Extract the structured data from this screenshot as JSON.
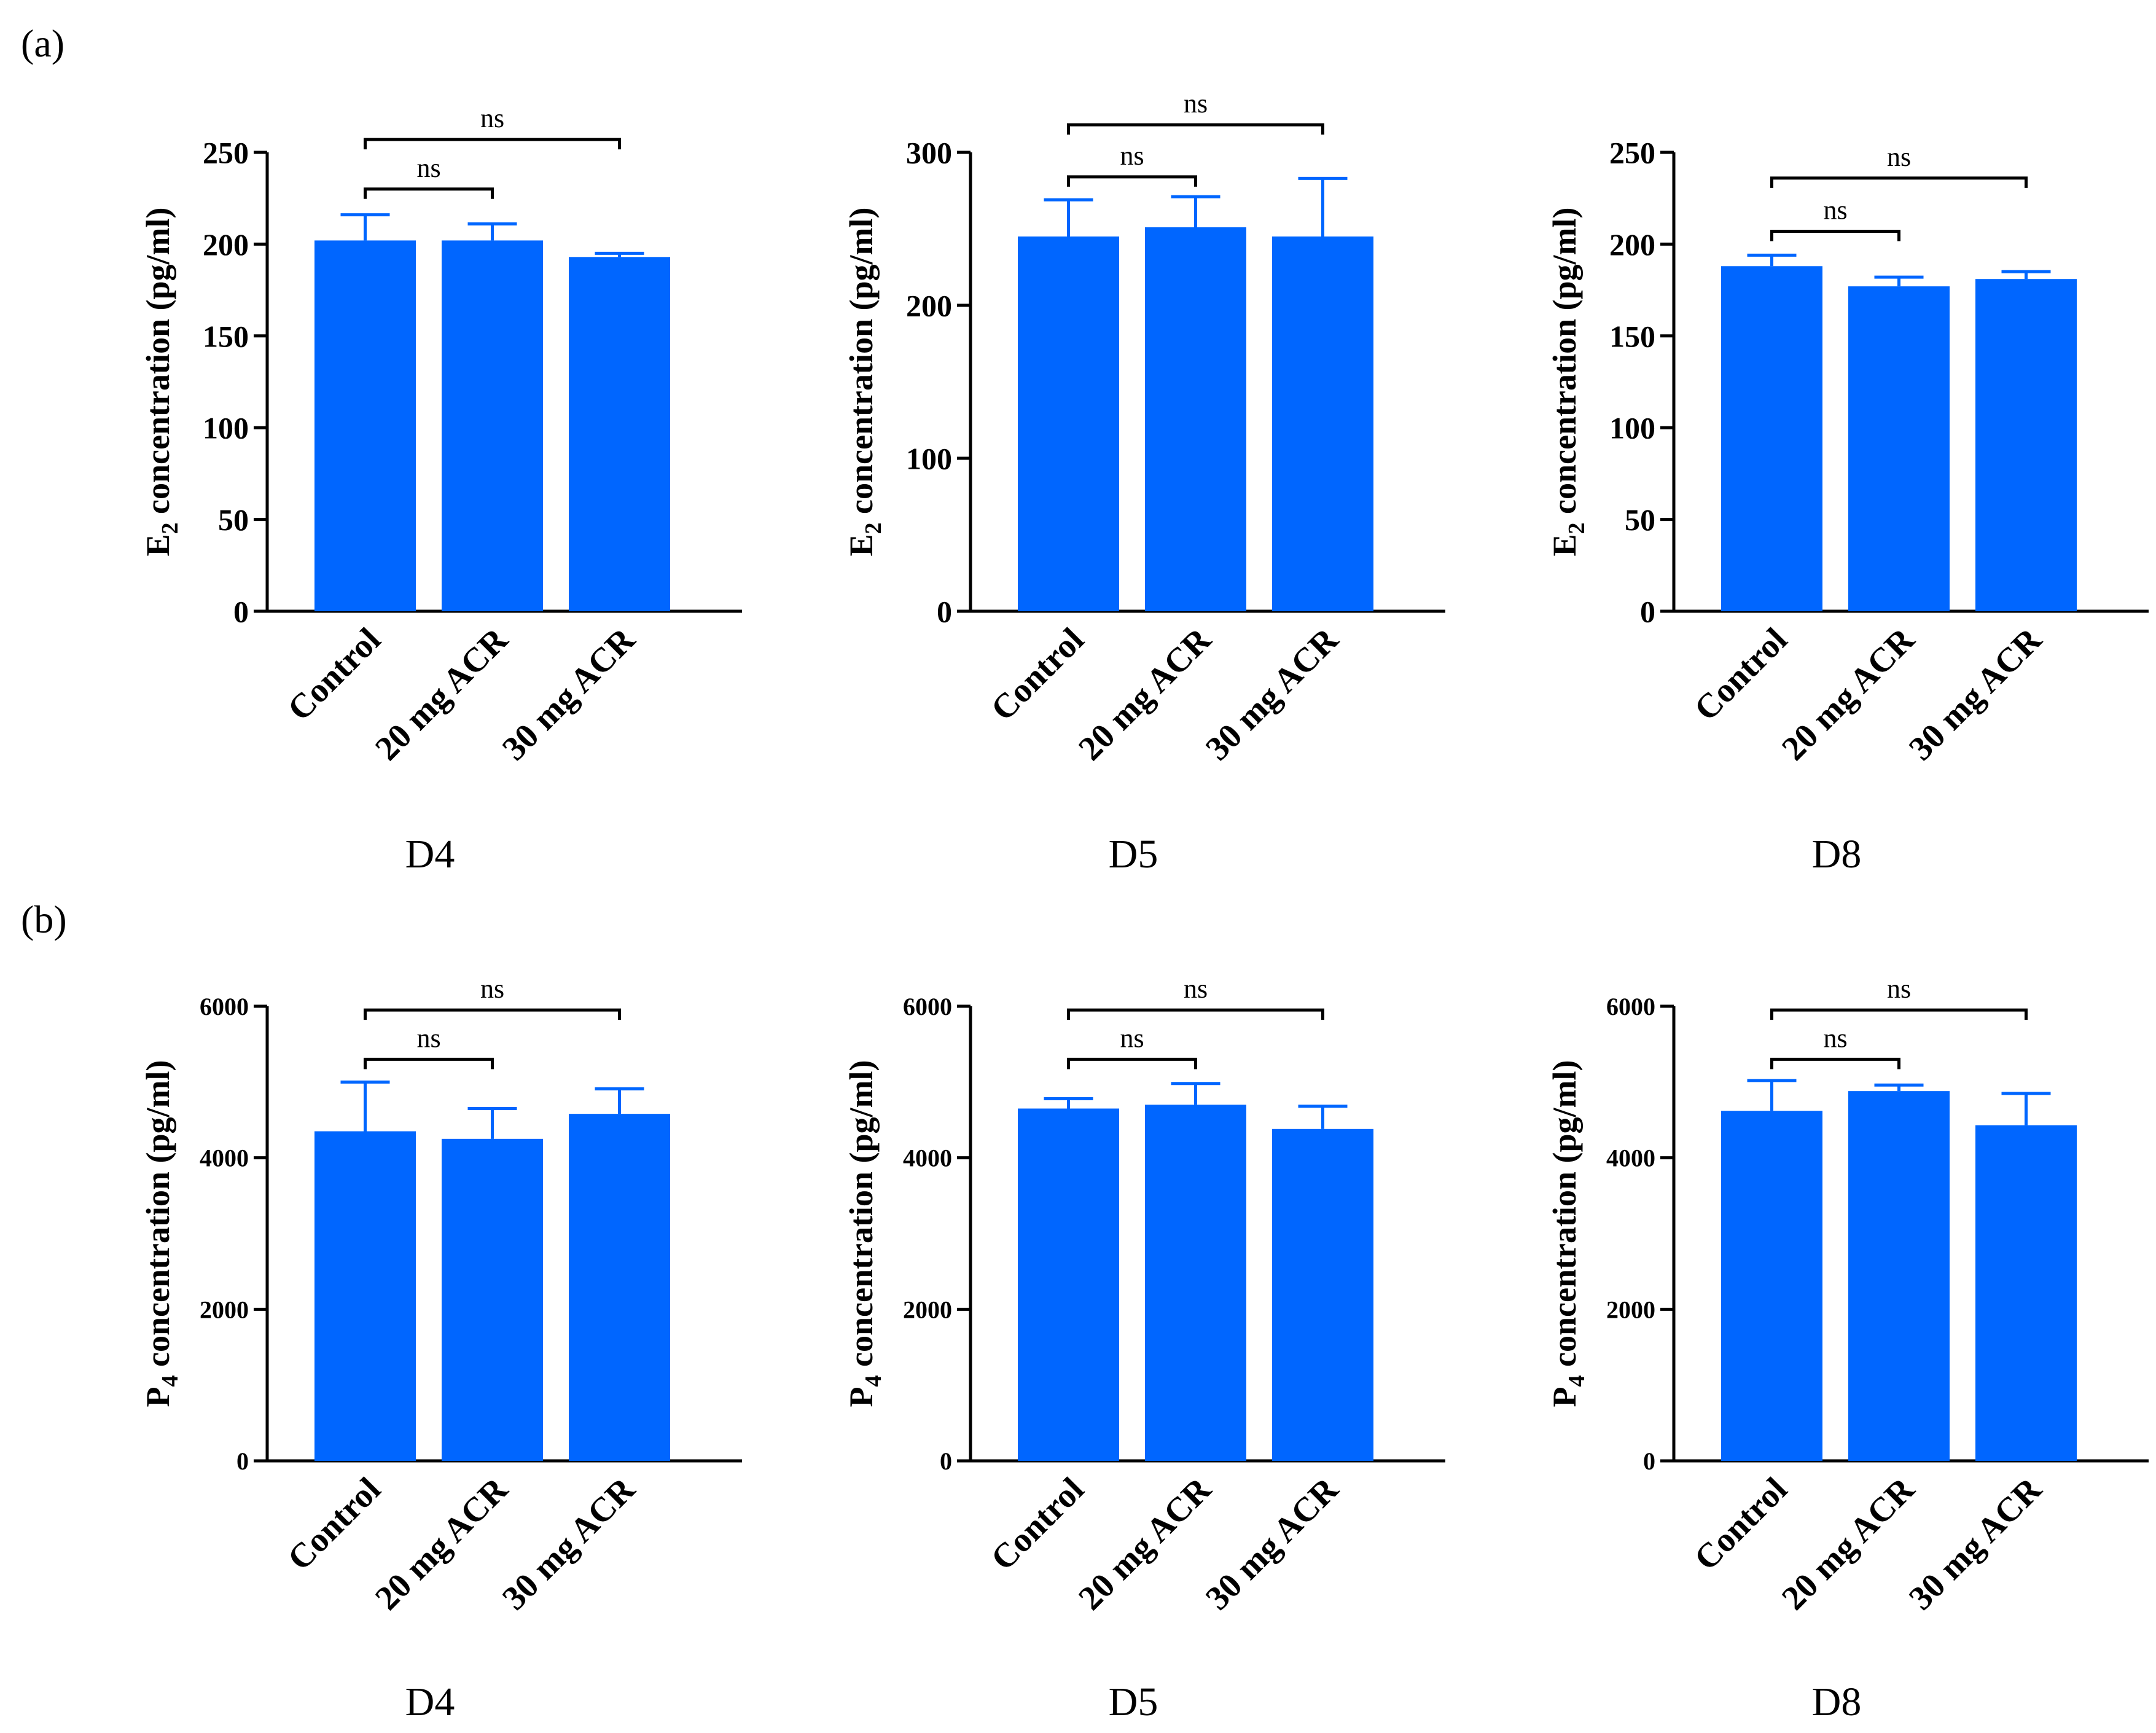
{
  "panel_labels": [
    "(a)",
    "(b)"
  ],
  "chart_data": [
    {
      "type": "bar",
      "row": 0,
      "col": 0,
      "categories": [
        "Control",
        "20 mg ACR",
        "30 mg ACR"
      ],
      "values": [
        202,
        202,
        193
      ],
      "errors": [
        14,
        9,
        2
      ],
      "ylabel_main": "E",
      "ylabel_sub": "2",
      "ylabel_rest": " concentration (pg/ml)",
      "ylim": [
        0,
        250
      ],
      "yticks": [
        "0",
        "50",
        "100",
        "150",
        "200",
        "250"
      ],
      "xlabel": "D4",
      "comparisons": [
        {
          "from": 0,
          "to": 1,
          "label": "ns",
          "y": 230
        },
        {
          "from": 0,
          "to": 2,
          "label": "ns",
          "y": 257
        }
      ],
      "bar_color": "#0066ff"
    },
    {
      "type": "bar",
      "row": 0,
      "col": 1,
      "categories": [
        "Control",
        "20 mg ACR",
        "30 mg ACR"
      ],
      "values": [
        245,
        251,
        245
      ],
      "errors": [
        24,
        20,
        38
      ],
      "ylabel_main": "E",
      "ylabel_sub": "2",
      "ylabel_rest": " concentration (pg/ml)",
      "ylim": [
        0,
        300
      ],
      "yticks": [
        "0",
        "100",
        "200",
        "300"
      ],
      "xlabel": "D5",
      "comparisons": [
        {
          "from": 0,
          "to": 1,
          "label": "ns",
          "y": 284
        },
        {
          "from": 0,
          "to": 2,
          "label": "ns",
          "y": 318
        }
      ],
      "bar_color": "#0066ff"
    },
    {
      "type": "bar",
      "row": 0,
      "col": 2,
      "categories": [
        "Control",
        "20 mg ACR",
        "30 mg ACR"
      ],
      "values": [
        188,
        177,
        181
      ],
      "errors": [
        6,
        5,
        4
      ],
      "ylabel_main": "E",
      "ylabel_sub": "2",
      "ylabel_rest": " concentration (pg/ml)",
      "ylim": [
        0,
        250
      ],
      "yticks": [
        "0",
        "50",
        "100",
        "150",
        "200",
        "250"
      ],
      "xlabel": "D8",
      "comparisons": [
        {
          "from": 0,
          "to": 1,
          "label": "ns",
          "y": 207
        },
        {
          "from": 0,
          "to": 2,
          "label": "ns",
          "y": 236
        }
      ],
      "bar_color": "#0066ff"
    },
    {
      "type": "bar",
      "row": 1,
      "col": 0,
      "categories": [
        "Control",
        "20 mg ACR",
        "30 mg ACR"
      ],
      "values": [
        4350,
        4250,
        4580
      ],
      "errors": [
        650,
        400,
        330
      ],
      "ylabel_main": "P",
      "ylabel_sub": "4",
      "ylabel_rest": " concentration (pg/ml)",
      "ylim": [
        0,
        6000
      ],
      "yticks": [
        "0",
        "2000",
        "4000",
        "6000"
      ],
      "xlabel": "D4",
      "comparisons": [
        {
          "from": 0,
          "to": 1,
          "label": "ns",
          "y": 5300
        },
        {
          "from": 0,
          "to": 2,
          "label": "ns",
          "y": 5950
        }
      ],
      "bar_color": "#0066ff"
    },
    {
      "type": "bar",
      "row": 1,
      "col": 1,
      "categories": [
        "Control",
        "20 mg ACR",
        "30 mg ACR"
      ],
      "values": [
        4650,
        4700,
        4380
      ],
      "errors": [
        130,
        280,
        300
      ],
      "ylabel_main": "P",
      "ylabel_sub": "4",
      "ylabel_rest": " concentration (pg/ml)",
      "ylim": [
        0,
        6000
      ],
      "yticks": [
        "0",
        "2000",
        "4000",
        "6000"
      ],
      "xlabel": "D5",
      "comparisons": [
        {
          "from": 0,
          "to": 1,
          "label": "ns",
          "y": 5300
        },
        {
          "from": 0,
          "to": 2,
          "label": "ns",
          "y": 5950
        }
      ],
      "bar_color": "#0066ff"
    },
    {
      "type": "bar",
      "row": 1,
      "col": 2,
      "categories": [
        "Control",
        "20 mg ACR",
        "30 mg ACR"
      ],
      "values": [
        4620,
        4880,
        4430
      ],
      "errors": [
        400,
        80,
        420
      ],
      "ylabel_main": "P",
      "ylabel_sub": "4",
      "ylabel_rest": " concentration (pg/ml)",
      "ylim": [
        0,
        6000
      ],
      "yticks": [
        "0",
        "2000",
        "4000",
        "6000"
      ],
      "xlabel": "D8",
      "comparisons": [
        {
          "from": 0,
          "to": 1,
          "label": "ns",
          "y": 5300
        },
        {
          "from": 0,
          "to": 2,
          "label": "ns",
          "y": 5950
        }
      ],
      "bar_color": "#0066ff"
    }
  ]
}
